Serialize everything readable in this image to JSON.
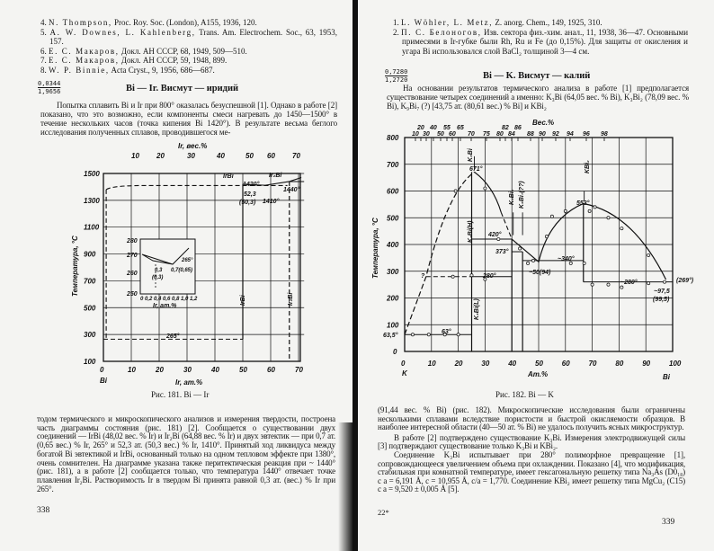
{
  "left_page": {
    "references": [
      {
        "num": "4.",
        "author": "N. Thompson,",
        "rest": " Proc. Roy. Soc. (London), A155, 1936, 120."
      },
      {
        "num": "5.",
        "author": "A. W. Downes, L. Kahlenberg,",
        "rest": " Trans. Am. Electrochem. Soc., 63, 1953, 157."
      },
      {
        "num": "6.",
        "author": "Е. С. Макаров,",
        "rest": " Докл. АН СССР, 68, 1949, 509—510."
      },
      {
        "num": "7.",
        "author": "Е. С. Макаров,",
        "rest": " Докл. АН СССР, 59, 1948, 899."
      },
      {
        "num": "8.",
        "author": "W. P. Binnie,",
        "rest": " Acta Cryst., 9, 1956, 686—687."
      }
    ],
    "mantissa": [
      "0,0344",
      "1,9656"
    ],
    "heading": "Bi — Ir. Висмут — иридий",
    "para1": "Попытка сплавить Bi и Ir при 800° оказалась безуспешной [1]. Однако в работе [2] показано, что это возможно, если компоненты смеси нагревать до 1450—1500° в течение нескольких часов (точка кипения Bi 1420°). В результате весьма беглого исследования полученных сплавов, проводившегося ме-",
    "para2": "тодом термического и микроскопического анализов и измерения твердости, построена часть диаграммы состояния (рис. 181) [2]. Сообщается о существовании двух соединений — IrBi (48,02 вес. % Ir) и Ir₂Bi (64,88 вес. % Ir) и двух эвтектик — при 0,7 ат. (0,65 вес.) % Ir, 265° и 52,3 ат. (50,3 вес.) % Ir, 1410°. Принятый ход ликвидуса между богатой Bi эвтектикой и IrBi, основанный только на одном тепловом эффекте при 1380°, очень сомнителен. На диаграмме указана также перитектическая реакция при ~ 1440° (рис. 181), а в работе [2] сообщается только, что температура 1440° отвечает точке плавления Ir₂Bi. Растворимость Ir в твердом Bi принята равной 0,3 ат. (вес.) % Ir при 265°.",
    "page_number": "338",
    "figure": {
      "caption": "Рис. 181. Bi — Ir",
      "top_axis_label": "Ir, вес.%",
      "top_ticks": [
        "10",
        "20",
        "30",
        "40",
        "50",
        "60",
        "70"
      ],
      "y_axis_label": "Температура, °C",
      "y_ticks": [
        "1500",
        "1300",
        "1100",
        "900",
        "700",
        "500",
        "300",
        "100"
      ],
      "x_ticks": [
        "0",
        "10",
        "20",
        "30",
        "40",
        "50",
        "60",
        "70"
      ],
      "x_axis_label": "Ir, ат.%",
      "left_element": "Bi",
      "annotations": {
        "irbi_top": "IrBi",
        "ir2bi_top": "Ir₂Bi",
        "t1420": "1420°",
        "t1410": "1410°",
        "t1440": "1440°",
        "e523": "52,3",
        "e503": "(50,3)",
        "t265": "265°",
        "irbi_phase": "IrBi",
        "ir2bi_phase": "Ir₂Bi"
      },
      "inset": {
        "y_ticks": [
          "280",
          "270",
          "260",
          "250"
        ],
        "x_ticks": "0 0,2 0,4 0,6 0,8 1,0 1,2",
        "x_axis_label": "Ir, ат.%",
        "a03": "0,3",
        "a03w": "(0,3)",
        "a07": "0,7(0,65)",
        "t265": "265°"
      }
    }
  },
  "right_page": {
    "references": [
      {
        "num": "1.",
        "author": "L. Wöhler, L. Metz,",
        "rest": " Z. anorg. Chem., 149, 1925, 310."
      },
      {
        "num": "2.",
        "author": "П. С. Белоногов,",
        "rest": " Изв. сектора физ.-хим. анал., 11, 1938, 36—47. Основными примесями в Ir-губке были Rh, Ru и Fe (до 0,15%). Для защиты от окисления и угара Bi использовался слой BaCl₂ толщиной 3—4 см."
      }
    ],
    "mantissa": [
      "0,7280",
      "1,2720"
    ],
    "heading": "Bi — K. Висмут — калий",
    "para1": "На основании результатов термического анализа в работе [1] предполагается существование четырех соединений а именно: K₃Bi (64,05 вес. % Bi), K₃Bi₂ (78,09 вес. % Bi), K₉Bi₇ (?) [43,75 ат. (80,61 вес.) % Bi] и KBi₂",
    "para2": "(91,44 вес. % Bi) (рис. 182). Микроскопические исследования были ограничены несколькими сплавами вследствие пористости и быстрой окисляемости образцов. В наиболее интересной области (40—50 ат. % Bi) не удалось получить ясных микроструктур.",
    "para3": "В работе [2] подтверждено существование K₃Bi. Измерения электродвижущей силы [3] подтверждают существование только K₃Bi и KBi₂.",
    "para4": "Соединение K₃Bi испытывает при 280° полиморфное превращение [1], сопровождающееся увеличением объема при охлаждении. Показано [4], что модификация, стабильная при комнатной температуре, имеет гексагональную решетку типа Na₃As (D0₁₈) с a = 6,191 Å, c = 10,955 Å, c/a = 1,770. Соединение KBi₂ имеет решетку типа MgCu₂ (C15) с a = 9,520 ± 0,005 Å [5].",
    "signature_mark": "22*",
    "page_number": "339",
    "figure": {
      "caption": "Рис. 182. Bi — K",
      "top_axis_label": "Вес.%",
      "top_ticks": [
        "10",
        "20",
        "30",
        "40",
        "50",
        "55",
        "60",
        "65",
        "70",
        "75",
        "80",
        "82",
        "84",
        "86",
        "88",
        "90",
        "92",
        "94",
        "96",
        "98"
      ],
      "y_axis_label": "Температура, °C",
      "y_ticks": [
        "800",
        "700",
        "600",
        "500",
        "400",
        "300",
        "200",
        "100",
        "0"
      ],
      "x_ticks": [
        "0",
        "10",
        "20",
        "30",
        "40",
        "50",
        "60",
        "70",
        "80",
        "90",
        "100"
      ],
      "x_axis_label": "Ат.%",
      "left_element": "K",
      "right_element": "Bi",
      "annotations": {
        "k3bi": "K₃Bi",
        "t671": "671°",
        "k3bi2": "K₃Bi₂",
        "k9bi7": "K₉Bi₇(??)",
        "kbi2": "KBi₂",
        "t553": "553°",
        "k3bi_h": "K₃Bi(H)",
        "t420": "420°",
        "t373": "373°",
        "t340": "~340°",
        "e50": "~50(94)",
        "t280a": "280°",
        "t280b": "~280°",
        "t269": "(269°)",
        "e975": "~97,5",
        "e995": "(99,5)",
        "k3bi_l": "K₃Bi(L)",
        "t635": "63,5°",
        "t63": "63°",
        "q": "?"
      }
    }
  }
}
